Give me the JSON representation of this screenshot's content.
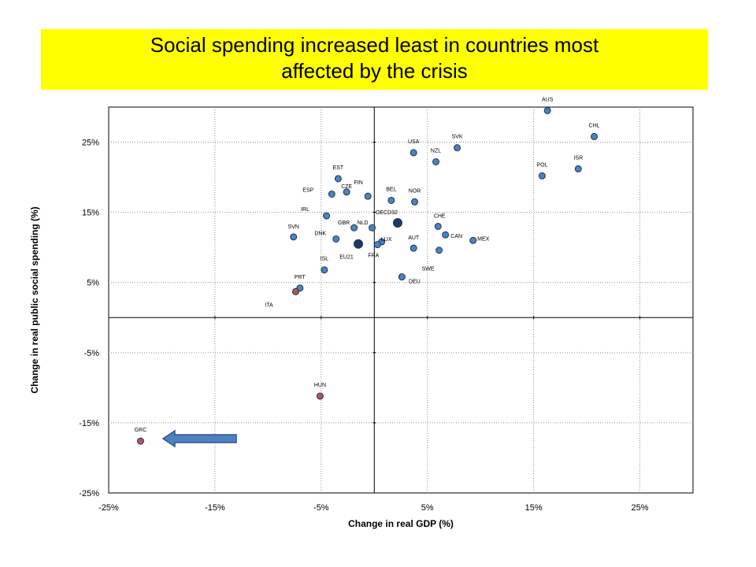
{
  "chart_data": {
    "type": "scatter",
    "title_lines": [
      "Social spending increased least in countries most",
      "affected by the crisis"
    ],
    "xlabel": "Change in real GDP (%)",
    "ylabel": "Change in real public social spending  (%)",
    "xlim": [
      -25,
      30
    ],
    "ylim": [
      -25,
      30
    ],
    "xticks": [
      -25,
      -15,
      -5,
      5,
      15,
      25
    ],
    "xtick_labels": [
      "-25%",
      "-15%",
      "-5%",
      "5%",
      "15%",
      "25%"
    ],
    "yticks": [
      -25,
      -15,
      -5,
      5,
      15,
      25
    ],
    "ytick_labels": [
      "-25%",
      "-15%",
      "-5%",
      "5%",
      "15%",
      "25%"
    ],
    "grid": true,
    "colors": {
      "blue": "#4f81bd",
      "dark_blue": "#1f3864",
      "red": "#c0504d",
      "title_bg": "#ffff00"
    },
    "points": [
      {
        "label": "AUS",
        "x": 16.3,
        "y": 29.5,
        "color": "blue"
      },
      {
        "label": "CHL",
        "x": 20.7,
        "y": 25.8,
        "color": "blue"
      },
      {
        "label": "SVK",
        "x": 7.8,
        "y": 24.2,
        "color": "blue"
      },
      {
        "label": "USA",
        "x": 3.7,
        "y": 23.5,
        "color": "blue"
      },
      {
        "label": "NZL",
        "x": 5.8,
        "y": 22.2,
        "color": "blue"
      },
      {
        "label": "ISR",
        "x": 19.2,
        "y": 21.2,
        "color": "blue"
      },
      {
        "label": "POL",
        "x": 15.8,
        "y": 20.2,
        "color": "blue"
      },
      {
        "label": "EST",
        "x": -3.4,
        "y": 19.8,
        "color": "blue"
      },
      {
        "label": "ESP",
        "x": -4.0,
        "y": 17.6,
        "color": "blue"
      },
      {
        "label": "CZE",
        "x": -2.6,
        "y": 17.9,
        "color": "blue"
      },
      {
        "label": "BEL",
        "x": 1.6,
        "y": 16.7,
        "color": "blue"
      },
      {
        "label": "NOR",
        "x": 3.8,
        "y": 16.5,
        "color": "blue"
      },
      {
        "label": "FIN",
        "x": -0.6,
        "y": 17.3,
        "color": "blue"
      },
      {
        "label": "IRL",
        "x": -4.5,
        "y": 14.5,
        "color": "blue"
      },
      {
        "label": "OECD32",
        "x": 2.2,
        "y": 13.5,
        "color": "dark_blue"
      },
      {
        "label": "CHE",
        "x": 6.0,
        "y": 13.0,
        "color": "blue"
      },
      {
        "label": "GBR",
        "x": -1.9,
        "y": 12.8,
        "color": "blue"
      },
      {
        "label": "NLD",
        "x": -0.2,
        "y": 12.8,
        "color": "blue"
      },
      {
        "label": "CAN",
        "x": 6.7,
        "y": 11.8,
        "color": "blue"
      },
      {
        "label": "SVN",
        "x": -7.6,
        "y": 11.5,
        "color": "blue"
      },
      {
        "label": "DNK",
        "x": -3.6,
        "y": 11.2,
        "color": "blue"
      },
      {
        "label": "MEX",
        "x": 9.3,
        "y": 11.0,
        "color": "blue"
      },
      {
        "label": "LUX",
        "x": 0.7,
        "y": 10.8,
        "color": "blue"
      },
      {
        "label": "EU21",
        "x": -1.5,
        "y": 10.5,
        "color": "dark_blue"
      },
      {
        "label": "FRA",
        "x": 0.3,
        "y": 10.4,
        "color": "blue"
      },
      {
        "label": "AUT",
        "x": 3.7,
        "y": 9.9,
        "color": "blue"
      },
      {
        "label": "SWE",
        "x": 6.1,
        "y": 9.6,
        "color": "blue"
      },
      {
        "label": "ISL",
        "x": -4.7,
        "y": 6.8,
        "color": "blue"
      },
      {
        "label": "DEU",
        "x": 2.6,
        "y": 5.8,
        "color": "blue"
      },
      {
        "label": "PRT",
        "x": -7.0,
        "y": 4.2,
        "color": "blue"
      },
      {
        "label": "ITA",
        "x": -7.4,
        "y": 3.7,
        "color": "red"
      },
      {
        "label": "HUN",
        "x": -5.1,
        "y": -11.2,
        "color": "red"
      },
      {
        "label": "GRC",
        "x": -22.0,
        "y": -17.6,
        "color": "red"
      }
    ]
  }
}
